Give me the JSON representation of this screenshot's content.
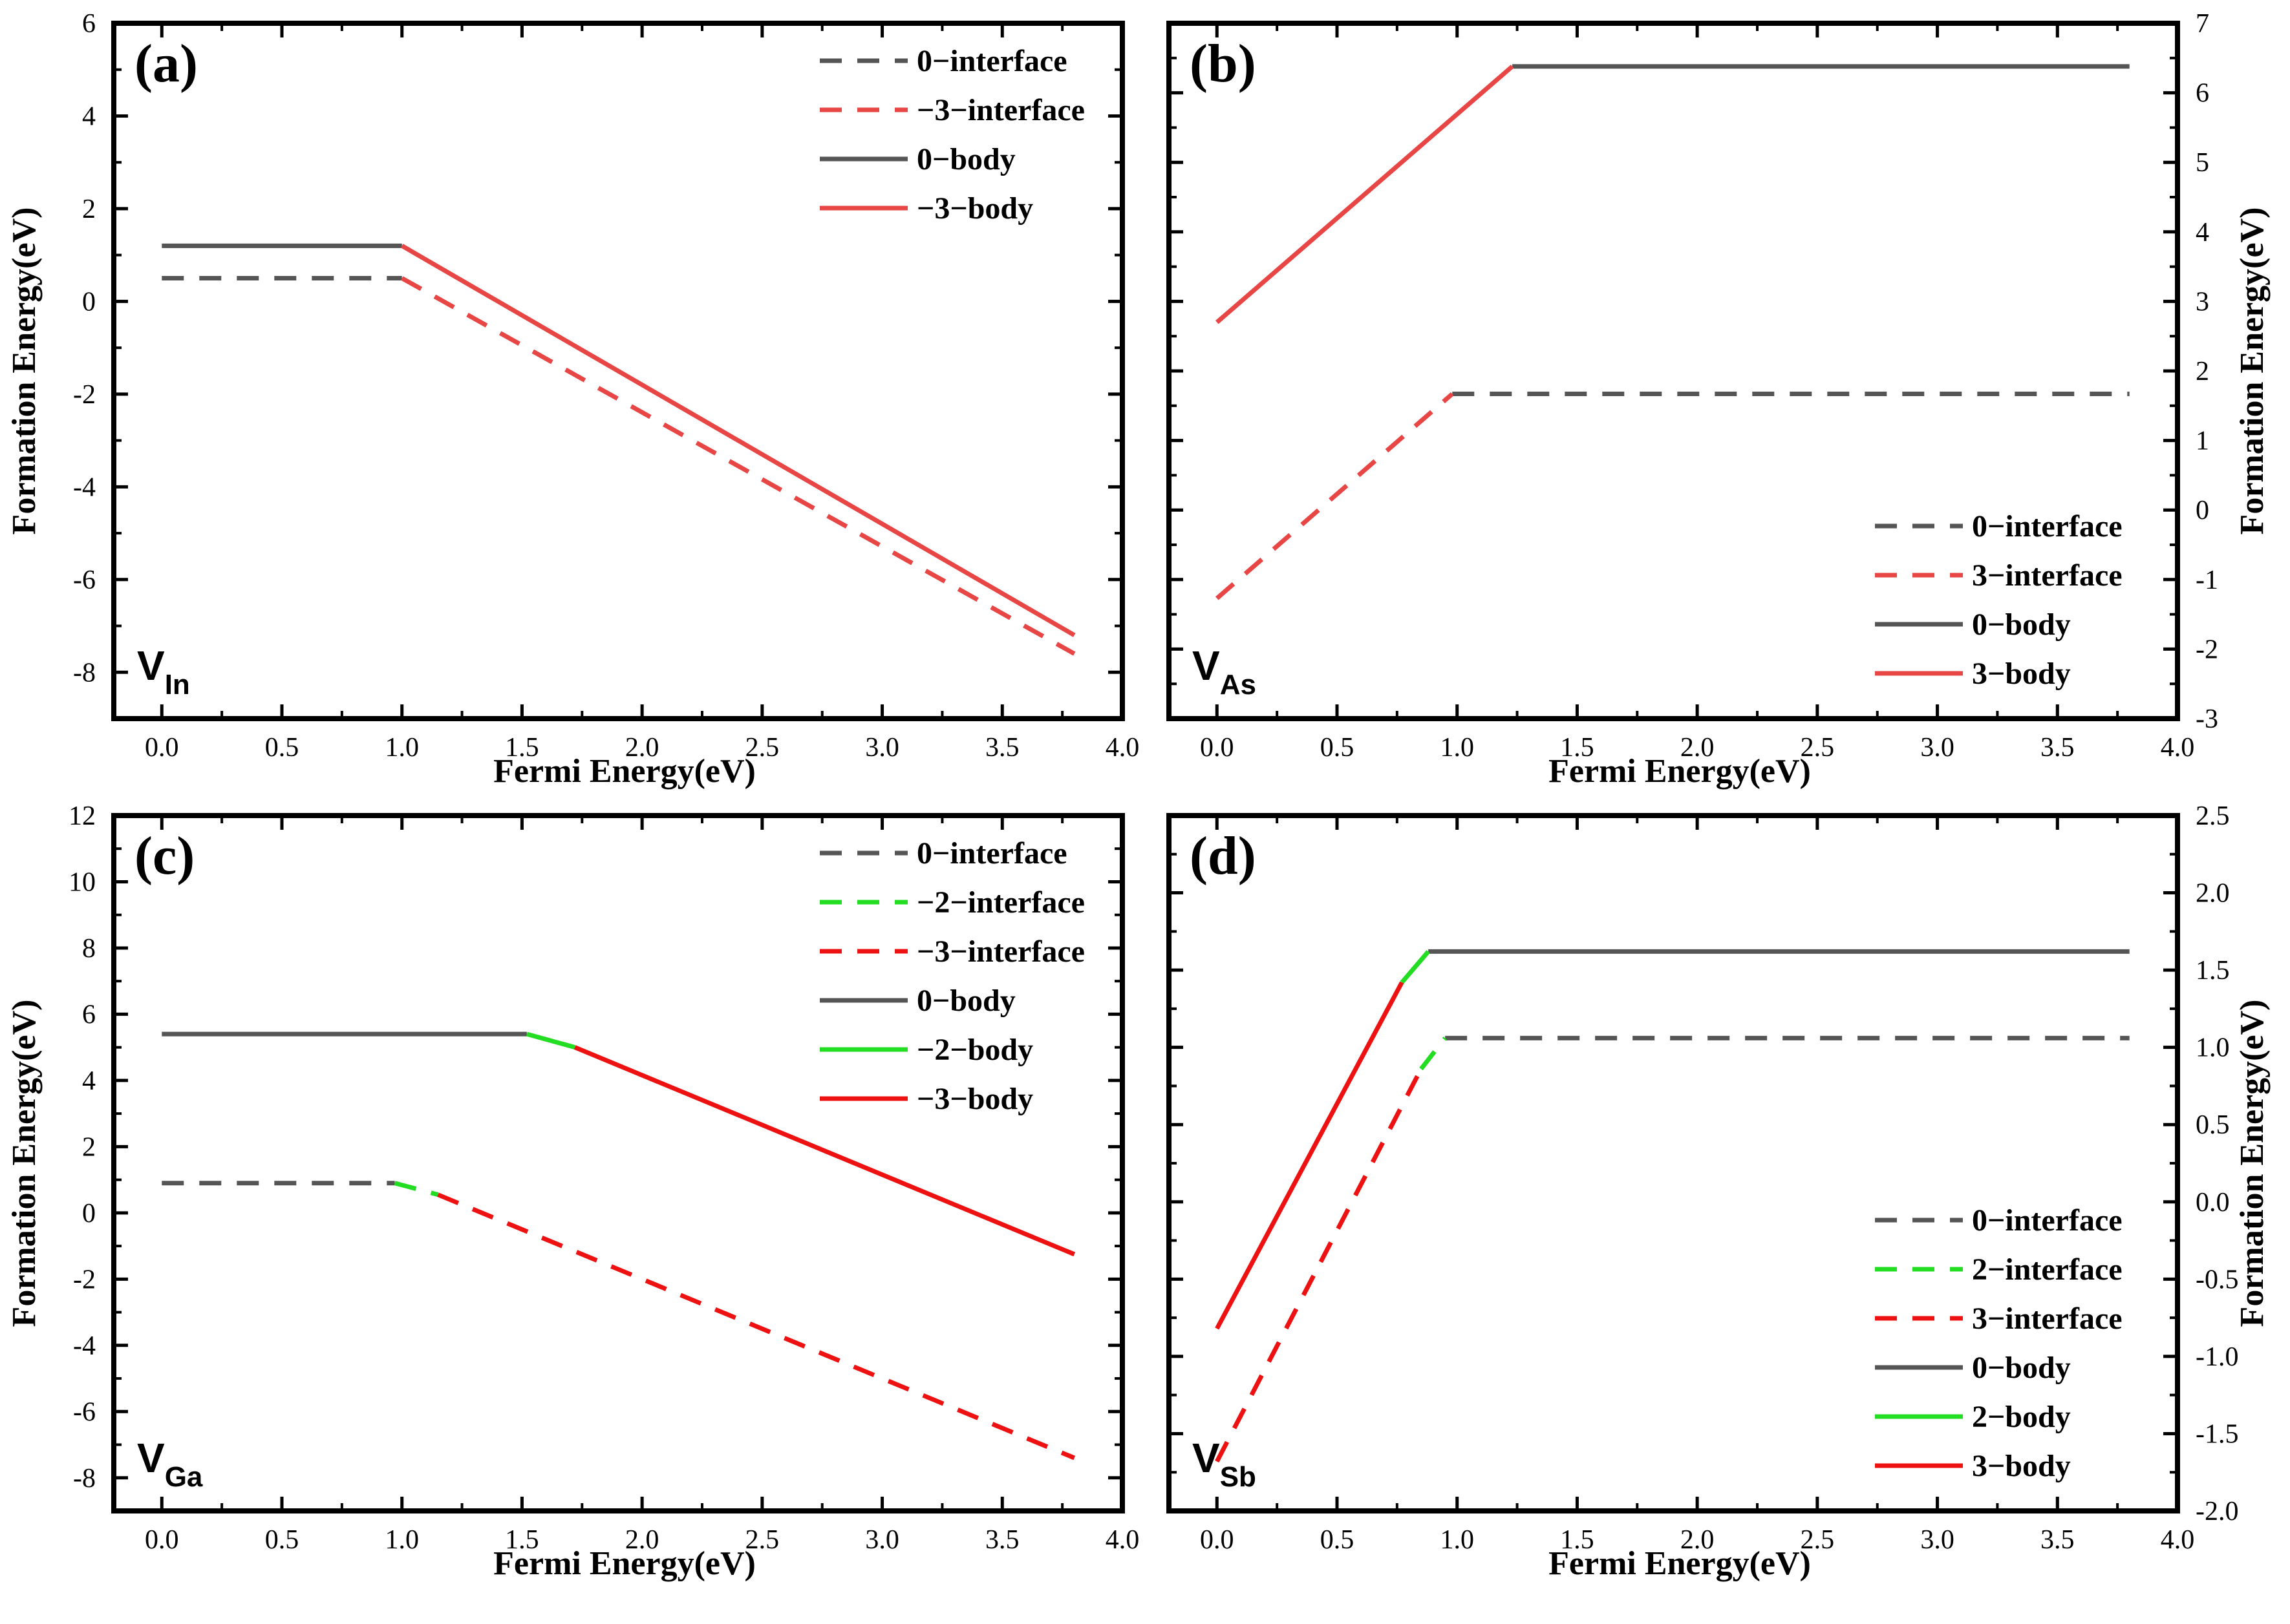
{
  "chart_data": [
    {
      "type": "line",
      "panel_label": "(a)",
      "defect_main": "V",
      "defect_sub": "In",
      "xlabel": "Fermi Energy(eV)",
      "ylabel": "Formation Energy(eV)",
      "y_axis_side": "left",
      "xlim": [
        -0.2,
        4.0
      ],
      "ylim": [
        -9,
        6
      ],
      "x_ticks": [
        "0.0",
        "0.5",
        "1.0",
        "1.5",
        "2.0",
        "2.5",
        "3.0",
        "3.5",
        "4.0"
      ],
      "y_ticks": [
        "-8",
        "-6",
        "-4",
        "-2",
        "0",
        "2",
        "4",
        "6"
      ],
      "legend_position": "top-right",
      "series": [
        {
          "name": "0−interface",
          "style": "dashed",
          "color": "#555555",
          "x": [
            0.0,
            1.0
          ],
          "y": [
            0.5,
            0.5
          ]
        },
        {
          "name": "−3−interface",
          "style": "dashed",
          "color": "#e84545",
          "x": [
            1.0,
            3.8
          ],
          "y": [
            0.5,
            -7.6
          ]
        },
        {
          "name": "0−body",
          "style": "solid",
          "color": "#555555",
          "x": [
            0.0,
            1.0
          ],
          "y": [
            1.2,
            1.2
          ]
        },
        {
          "name": "−3−body",
          "style": "solid",
          "color": "#e84545",
          "x": [
            1.0,
            3.8
          ],
          "y": [
            1.2,
            -7.2
          ]
        }
      ]
    },
    {
      "type": "line",
      "panel_label": "(b)",
      "defect_main": "V",
      "defect_sub": "As",
      "xlabel": "Fermi Energy(eV)",
      "ylabel": "Formation Energy(eV)",
      "y_axis_side": "right",
      "xlim": [
        -0.2,
        4.0
      ],
      "ylim": [
        -3,
        7
      ],
      "x_ticks": [
        "0.0",
        "0.5",
        "1.0",
        "1.5",
        "2.0",
        "2.5",
        "3.0",
        "3.5",
        "4.0"
      ],
      "y_ticks": [
        "-3",
        "-2",
        "-1",
        "0",
        "1",
        "2",
        "3",
        "4",
        "5",
        "6",
        "7"
      ],
      "legend_position": "bottom-right",
      "series": [
        {
          "name": "0−interface",
          "style": "dashed",
          "color": "#555555",
          "x": [
            0.98,
            3.8
          ],
          "y": [
            1.67,
            1.67
          ]
        },
        {
          "name": "3−interface",
          "style": "dashed",
          "color": "#e84545",
          "x": [
            0.0,
            0.98
          ],
          "y": [
            -1.27,
            1.67
          ]
        },
        {
          "name": "0−body",
          "style": "solid",
          "color": "#555555",
          "x": [
            1.23,
            3.8
          ],
          "y": [
            6.38,
            6.38
          ]
        },
        {
          "name": "3−body",
          "style": "solid",
          "color": "#e84545",
          "x": [
            0.0,
            1.23
          ],
          "y": [
            2.7,
            6.38
          ]
        }
      ]
    },
    {
      "type": "line",
      "panel_label": "(c)",
      "defect_main": "V",
      "defect_sub": "Ga",
      "xlabel": "Fermi Energy(eV)",
      "ylabel": "Formation Energy(eV)",
      "y_axis_side": "left",
      "xlim": [
        -0.2,
        4.0
      ],
      "ylim": [
        -9,
        12
      ],
      "x_ticks": [
        "0.0",
        "0.5",
        "1.0",
        "1.5",
        "2.0",
        "2.5",
        "3.0",
        "3.5",
        "4.0"
      ],
      "y_ticks": [
        "-8",
        "-6",
        "-4",
        "-2",
        "0",
        "2",
        "4",
        "6",
        "8",
        "10",
        "12"
      ],
      "legend_position": "top-right",
      "series": [
        {
          "name": "0−interface",
          "style": "dashed",
          "color": "#555555",
          "x": [
            0.0,
            0.97
          ],
          "y": [
            0.9,
            0.9
          ]
        },
        {
          "name": "−2−interface",
          "style": "dashed",
          "color": "#22dd22",
          "x": [
            0.97,
            1.15
          ],
          "y": [
            0.9,
            0.55
          ]
        },
        {
          "name": "−3−interface",
          "style": "dashed",
          "color": "#ee1111",
          "x": [
            1.15,
            3.8
          ],
          "y": [
            0.55,
            -7.4
          ]
        },
        {
          "name": "0−body",
          "style": "solid",
          "color": "#555555",
          "x": [
            0.0,
            1.52
          ],
          "y": [
            5.4,
            5.4
          ]
        },
        {
          "name": "−2−body",
          "style": "solid",
          "color": "#22dd22",
          "x": [
            1.52,
            1.72
          ],
          "y": [
            5.4,
            5.0
          ]
        },
        {
          "name": "−3−body",
          "style": "solid",
          "color": "#ee1111",
          "x": [
            1.72,
            3.8
          ],
          "y": [
            5.0,
            -1.25
          ]
        }
      ]
    },
    {
      "type": "line",
      "panel_label": "(d)",
      "defect_main": "V",
      "defect_sub": "Sb",
      "xlabel": "Fermi Energy(eV)",
      "ylabel": "Formation Energy(eV)",
      "y_axis_side": "right",
      "xlim": [
        -0.2,
        4.0
      ],
      "ylim": [
        -2.0,
        2.5
      ],
      "x_ticks": [
        "0.0",
        "0.5",
        "1.0",
        "1.5",
        "2.0",
        "2.5",
        "3.0",
        "3.5",
        "4.0"
      ],
      "y_ticks": [
        "-2.0",
        "-1.5",
        "-1.0",
        "-0.5",
        "0.0",
        "0.5",
        "1.0",
        "1.5",
        "2.0",
        "2.5"
      ],
      "legend_position": "bottom-right",
      "series": [
        {
          "name": "0−interface",
          "style": "dashed",
          "color": "#555555",
          "x": [
            0.95,
            3.8
          ],
          "y": [
            1.06,
            1.06
          ]
        },
        {
          "name": "2−interface",
          "style": "dashed",
          "color": "#22dd22",
          "x": [
            0.85,
            0.95
          ],
          "y": [
            0.86,
            1.06
          ]
        },
        {
          "name": "3−interface",
          "style": "dashed",
          "color": "#ee1111",
          "x": [
            0.0,
            0.85
          ],
          "y": [
            -1.68,
            0.86
          ]
        },
        {
          "name": "0−body",
          "style": "solid",
          "color": "#555555",
          "x": [
            0.88,
            3.8
          ],
          "y": [
            1.62,
            1.62
          ]
        },
        {
          "name": "2−body",
          "style": "solid",
          "color": "#22dd22",
          "x": [
            0.77,
            0.88
          ],
          "y": [
            1.42,
            1.62
          ]
        },
        {
          "name": "3−body",
          "style": "solid",
          "color": "#ee1111",
          "x": [
            0.0,
            0.77
          ],
          "y": [
            -0.82,
            1.42
          ]
        }
      ]
    }
  ]
}
